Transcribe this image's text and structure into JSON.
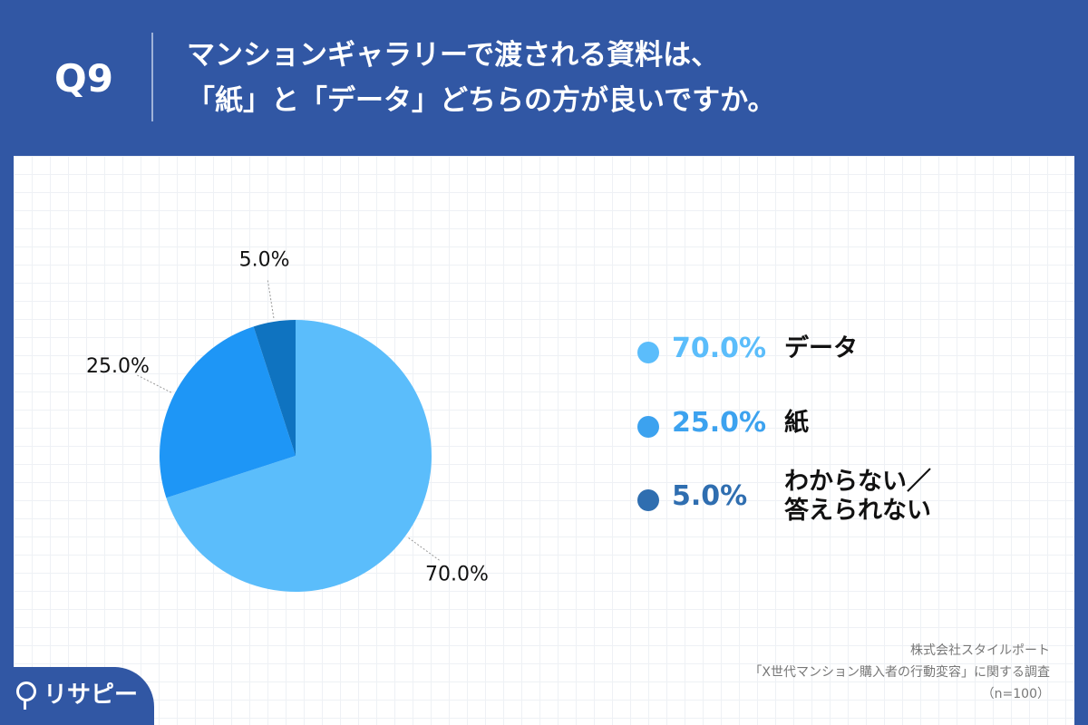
{
  "header": {
    "question": "Q9",
    "title_line1": "マンションギャラリーで渡される資料は、",
    "title_line2": "「紙」と「データ」どちらの方が良いですか。"
  },
  "chart_data": {
    "type": "pie",
    "title": "マンションギャラリーで渡される資料は、「紙」と「データ」どちらの方が良いですか。",
    "slices": [
      {
        "label": "データ",
        "value": 70.0,
        "display": "70.0%",
        "color": "#5bbdfb"
      },
      {
        "label": "紙",
        "value": 25.0,
        "display": "25.0%",
        "color": "#1e96f6"
      },
      {
        "label": "わからない／答えられない",
        "value": 5.0,
        "display": "5.0%",
        "color": "#0f73c0"
      }
    ],
    "legend_position": "right"
  },
  "legend": [
    {
      "pct": "70.0%",
      "name": "データ",
      "pct_color": "#5bbdfb",
      "dot_color": "#5bbdfb"
    },
    {
      "pct": "25.0%",
      "name": "紙",
      "pct_color": "#3ca2ef",
      "dot_color": "#3ca2ef"
    },
    {
      "pct": "5.0%",
      "name_line1": "わからない／",
      "name_line2": "答えられない",
      "pct_color": "#2f6eb0",
      "dot_color": "#2f6eb0"
    }
  ],
  "footer": {
    "company": "株式会社スタイルポート",
    "survey": "「X世代マンション購入者の行動変容」に関する調査",
    "sample": "（n=100）"
  },
  "logo": {
    "text": "リサピー"
  }
}
